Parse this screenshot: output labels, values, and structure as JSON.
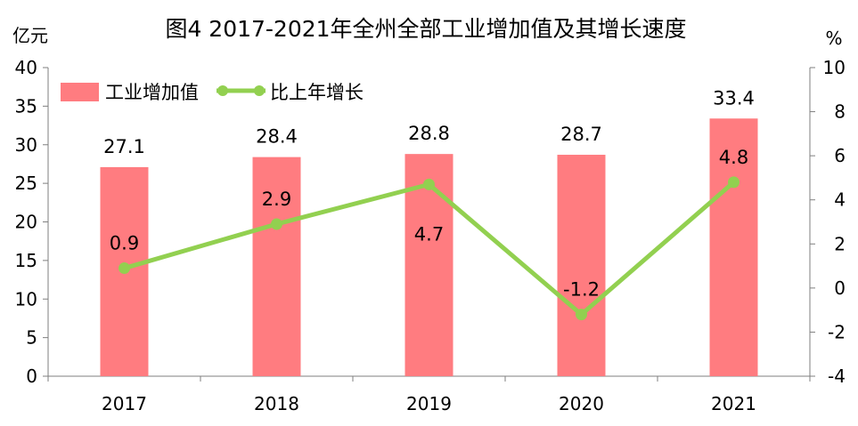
{
  "chart_data": {
    "type": "bar",
    "title": "图4  2017-2021年全州全部工业增加值及其增长速度",
    "y_left_unit": "亿元",
    "y_right_unit": "%",
    "categories": [
      "2017",
      "2018",
      "2019",
      "2020",
      "2021"
    ],
    "ylim_left": [
      0,
      40
    ],
    "ylim_right": [
      -4,
      10
    ],
    "yticks_left": [
      "0",
      "5",
      "10",
      "15",
      "20",
      "25",
      "30",
      "35",
      "40"
    ],
    "yticks_right": [
      "-4",
      "-2",
      "0",
      "2",
      "4",
      "6",
      "8",
      "10"
    ],
    "series": [
      {
        "name": "工业增加值",
        "type": "bar",
        "axis": "left",
        "color": "#ff7c80",
        "values": [
          27.1,
          28.4,
          28.8,
          28.7,
          33.4
        ],
        "labels": [
          "27.1",
          "28.4",
          "28.8",
          "28.7",
          "33.4"
        ]
      },
      {
        "name": "比上年增长",
        "type": "line",
        "axis": "right",
        "color": "#92d050",
        "values": [
          0.9,
          2.9,
          4.7,
          -1.2,
          4.8
        ],
        "labels": [
          "0.9",
          "2.9",
          "4.7",
          "-1.2",
          "4.8"
        ]
      }
    ],
    "grid": false,
    "legend_position": "top-left"
  }
}
